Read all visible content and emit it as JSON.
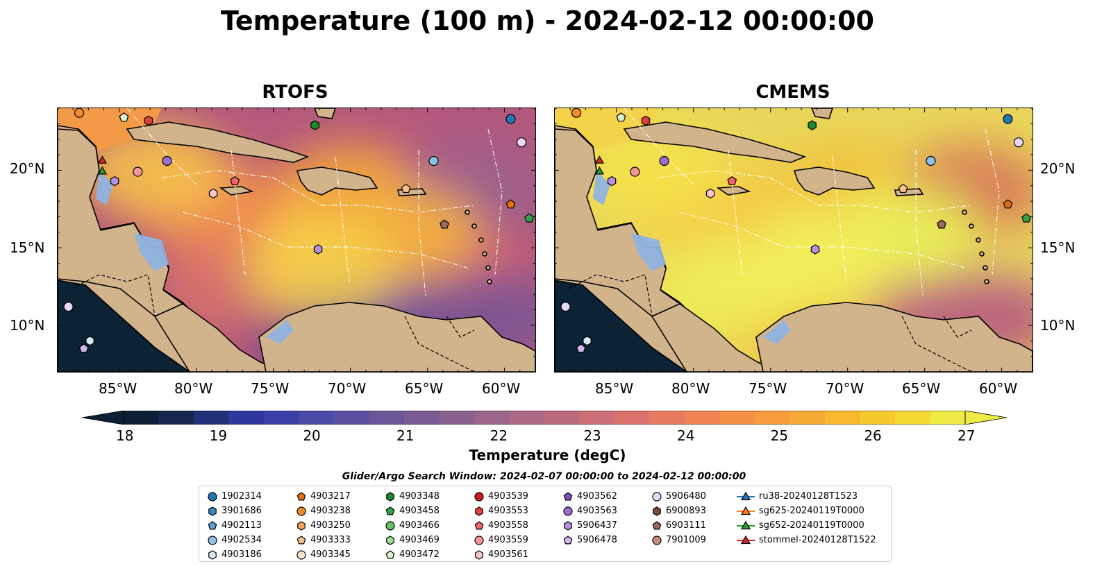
{
  "title": "Temperature (100 m) - 2024-02-12 00:00:00",
  "panels": [
    {
      "title": "RTOFS"
    },
    {
      "title": "CMEMS"
    }
  ],
  "lat_ticks": [
    "20°N",
    "15°N",
    "10°N"
  ],
  "lon_ticks": [
    "85°W",
    "80°W",
    "75°W",
    "70°W",
    "65°W",
    "60°W"
  ],
  "extent": {
    "lon": [
      -89.0,
      -58.0
    ],
    "lat": [
      7.0,
      24.0
    ]
  },
  "colorbar": {
    "label": "Temperature (degC)",
    "ticks": [
      "18",
      "19",
      "20",
      "21",
      "22",
      "23",
      "24",
      "25",
      "26",
      "27"
    ],
    "range": [
      18,
      27
    ],
    "colors": [
      "#0b1f35",
      "#15274f",
      "#22307a",
      "#2e389d",
      "#3b41a6",
      "#4b4aa6",
      "#5a509f",
      "#6a5699",
      "#7a5b93",
      "#8a608f",
      "#9b648a",
      "#ab6885",
      "#bc6b7e",
      "#cc6f76",
      "#db736c",
      "#e77a5f",
      "#f08352",
      "#f48f46",
      "#f69c3c",
      "#f7aa35",
      "#f8b930",
      "#f8c92f",
      "#f5da35",
      "#efeb45"
    ]
  },
  "search_window": "Glider/Argo Search Window: 2024-02-07 00:00:00 to 2024-02-12 00:00:00",
  "legend": [
    {
      "label": "1902314",
      "marker": "circle",
      "color": "#1f77b4"
    },
    {
      "label": "3901686",
      "marker": "hexagon",
      "color": "#3a86c0"
    },
    {
      "label": "4902113",
      "marker": "pentagon",
      "color": "#5ba3d9"
    },
    {
      "label": "4902534",
      "marker": "circle",
      "color": "#8ec1e5"
    },
    {
      "label": "4903186",
      "marker": "hexagon",
      "color": "#d6e9f6"
    },
    {
      "label": "4903217",
      "marker": "pentagon",
      "color": "#e6700b"
    },
    {
      "label": "4903238",
      "marker": "circle",
      "color": "#f3892a"
    },
    {
      "label": "4903250",
      "marker": "hexagon",
      "color": "#f9a459"
    },
    {
      "label": "4903333",
      "marker": "pentagon",
      "color": "#fbc08f"
    },
    {
      "label": "4903345",
      "marker": "circle",
      "color": "#fde3c8"
    },
    {
      "label": "4903348",
      "marker": "hexagon",
      "color": "#1d8a2c"
    },
    {
      "label": "4903458",
      "marker": "pentagon",
      "color": "#33a447"
    },
    {
      "label": "4903466",
      "marker": "circle",
      "color": "#63c26a"
    },
    {
      "label": "4903469",
      "marker": "hexagon",
      "color": "#a2dc9b"
    },
    {
      "label": "4903472",
      "marker": "pentagon",
      "color": "#d8f2cc"
    },
    {
      "label": "4903539",
      "marker": "circle",
      "color": "#cb181d"
    },
    {
      "label": "4903553",
      "marker": "hexagon",
      "color": "#e0413d"
    },
    {
      "label": "4903558",
      "marker": "pentagon",
      "color": "#f0646a"
    },
    {
      "label": "4903559",
      "marker": "circle",
      "color": "#f6959a"
    },
    {
      "label": "4903561",
      "marker": "hexagon",
      "color": "#fbc6c6"
    },
    {
      "label": "4903562",
      "marker": "pentagon",
      "color": "#7a4ebf"
    },
    {
      "label": "4903563",
      "marker": "circle",
      "color": "#9b6fd0"
    },
    {
      "label": "5906437",
      "marker": "hexagon",
      "color": "#b592df"
    },
    {
      "label": "5906478",
      "marker": "pentagon",
      "color": "#cdb5ee"
    },
    {
      "label": "5906480",
      "marker": "circle",
      "color": "#e7d9f7"
    },
    {
      "label": "6900893",
      "marker": "hexagon",
      "color": "#7b4a3a"
    },
    {
      "label": "6903111",
      "marker": "pentagon",
      "color": "#9a6a5a"
    },
    {
      "label": "7901009",
      "marker": "circle",
      "color": "#c48d80"
    },
    {
      "label": "ru38-20240128T1523",
      "marker": "triangle-line",
      "color": "#1f77b4"
    },
    {
      "label": "sg625-20240119T0000",
      "marker": "triangle-line",
      "color": "#ff7f0e"
    },
    {
      "label": "sg652-20240119T0000",
      "marker": "triangle-line",
      "color": "#2ca02c"
    },
    {
      "label": "stommel-20240128T1522",
      "marker": "triangle-line",
      "color": "#d62728"
    }
  ],
  "floats": [
    {
      "id": "1902314",
      "lon": -59.6,
      "lat": 23.3
    },
    {
      "id": "4903238",
      "lon": -87.6,
      "lat": 23.7
    },
    {
      "id": "4903472",
      "lon": -84.7,
      "lat": 23.4
    },
    {
      "id": "4903553",
      "lon": -83.1,
      "lat": 23.2
    },
    {
      "id": "4903348",
      "lon": -72.3,
      "lat": 22.9
    },
    {
      "id": "5906480",
      "lon": -58.9,
      "lat": 21.8
    },
    {
      "id": "4903563",
      "lon": -81.9,
      "lat": 20.6
    },
    {
      "id": "4902534",
      "lon": -64.6,
      "lat": 20.6
    },
    {
      "id": "4903559",
      "lon": -83.8,
      "lat": 19.9
    },
    {
      "id": "5906437",
      "lon": -85.3,
      "lat": 19.3
    },
    {
      "id": "4903558",
      "lon": -77.5,
      "lat": 19.3
    },
    {
      "id": "4903561",
      "lon": -78.9,
      "lat": 18.5
    },
    {
      "id": "4903333",
      "lon": -66.4,
      "lat": 18.8
    },
    {
      "id": "4903217",
      "lon": -59.6,
      "lat": 17.8
    },
    {
      "id": "4903458",
      "lon": -58.4,
      "lat": 16.9
    },
    {
      "id": "6903111",
      "lon": -63.9,
      "lat": 16.5
    },
    {
      "id": "5906437",
      "lon": -72.1,
      "lat": 14.9
    },
    {
      "id": "4903186",
      "lon": -86.9,
      "lat": 9.0
    },
    {
      "id": "5906478",
      "lon": -87.3,
      "lat": 8.5
    },
    {
      "id": "5906480",
      "lon": -88.3,
      "lat": 11.2
    },
    {
      "id": "stommel-20240128T1522",
      "lon": -86.1,
      "lat": 20.6
    },
    {
      "id": "sg652-20240119T0000",
      "lon": -86.1,
      "lat": 19.9
    }
  ]
}
